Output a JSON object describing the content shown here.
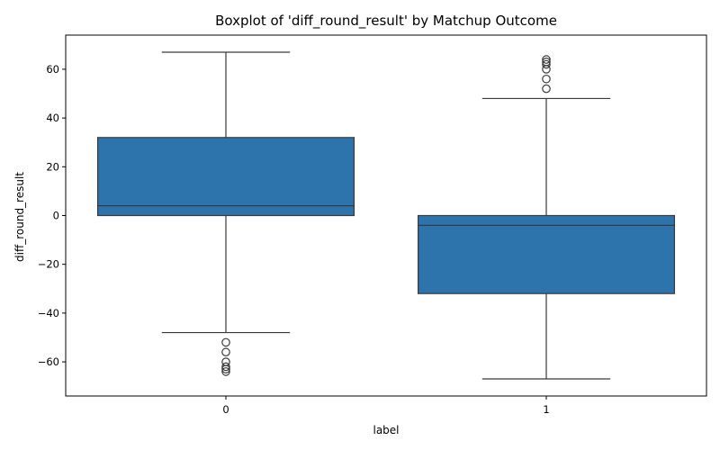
{
  "chart_data": {
    "type": "box",
    "title": "Boxplot of 'diff_round_result' by Matchup Outcome",
    "xlabel": "label",
    "ylabel": "diff_round_result",
    "ylim": [
      -74,
      74
    ],
    "yticks": [
      -60,
      -40,
      -20,
      0,
      20,
      40,
      60
    ],
    "ytick_labels": [
      "−60",
      "−40",
      "−20",
      "0",
      "20",
      "40",
      "60"
    ],
    "grid": false,
    "box_color": "#2e74ac",
    "line_color": "#3a3a3a",
    "categories": [
      "0",
      "1"
    ],
    "boxes": [
      {
        "category": "0",
        "whisker_low": -48,
        "q1": 0,
        "median": 4,
        "q3": 32,
        "whisker_high": 67,
        "outliers": [
          -52,
          -56,
          -60,
          -62,
          -63,
          -64
        ]
      },
      {
        "category": "1",
        "whisker_low": -67,
        "q1": -32,
        "median": -4,
        "q3": 0,
        "whisker_high": 48,
        "outliers": [
          52,
          56,
          60,
          62,
          63,
          64
        ]
      }
    ]
  }
}
